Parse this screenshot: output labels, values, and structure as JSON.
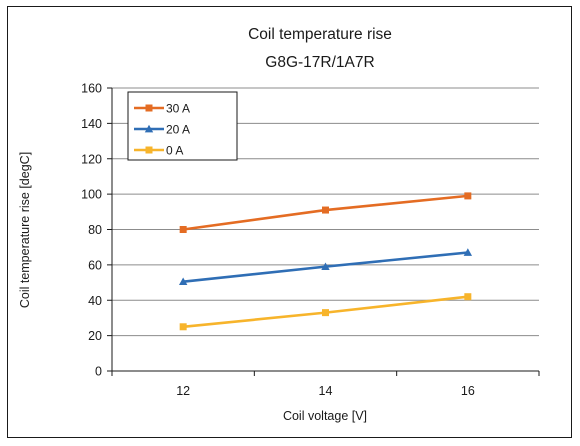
{
  "chart_data": {
    "type": "line",
    "title": "Coil temperature rise",
    "subtitle": "G8G-17R/1A7R",
    "xlabel": "Coil voltage [V]",
    "ylabel": "Coil temperature rise [degC]",
    "categories": [
      "12",
      "14",
      "16"
    ],
    "ylim": [
      0,
      160
    ],
    "yticks": [
      0,
      20,
      40,
      60,
      80,
      100,
      120,
      140,
      160
    ],
    "grid": true,
    "legend_position": "top-left",
    "series": [
      {
        "name": "30 A",
        "values": [
          80,
          91,
          99
        ],
        "color": "#e46c23",
        "marker": "square"
      },
      {
        "name": "20 A",
        "values": [
          50.5,
          59,
          67
        ],
        "color": "#2f6eb5",
        "marker": "triangle"
      },
      {
        "name": "0 A",
        "values": [
          25,
          33,
          42
        ],
        "color": "#f7b42b",
        "marker": "square"
      }
    ]
  }
}
